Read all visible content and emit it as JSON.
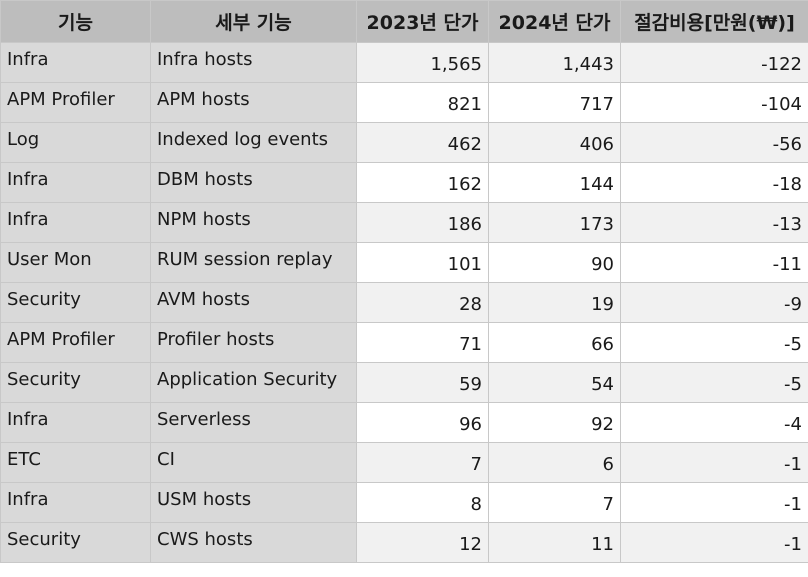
{
  "headers": [
    "기능",
    "세부 기능",
    "2023년 단가",
    "2024년 단가",
    "절감비용[만원(₩)]"
  ],
  "rows": [
    [
      "Infra",
      "Infra hosts",
      "1,565",
      "1,443",
      "-122"
    ],
    [
      "APM Profiler",
      "APM hosts",
      "821",
      "717",
      "-104"
    ],
    [
      "Log",
      "Indexed log events",
      "462",
      "406",
      "-56"
    ],
    [
      "Infra",
      "DBM hosts",
      "162",
      "144",
      "-18"
    ],
    [
      "Infra",
      "NPM hosts",
      "186",
      "173",
      "-13"
    ],
    [
      "User Mon",
      "RUM session replay",
      "101",
      "90",
      "-11"
    ],
    [
      "Security",
      "AVM hosts",
      "28",
      "19",
      "-9"
    ],
    [
      "APM Profiler",
      "Profiler hosts",
      "71",
      "66",
      "-5"
    ],
    [
      "Security",
      "Application Security",
      "59",
      "54",
      "-5"
    ],
    [
      "Infra",
      "Serverless",
      "96",
      "92",
      "-4"
    ],
    [
      "ETC",
      "CI",
      "7",
      "6",
      "-1"
    ],
    [
      "Infra",
      "USM hosts",
      "8",
      "7",
      "-1"
    ],
    [
      "Security",
      "CWS hosts",
      "12",
      "11",
      "-1"
    ]
  ]
}
